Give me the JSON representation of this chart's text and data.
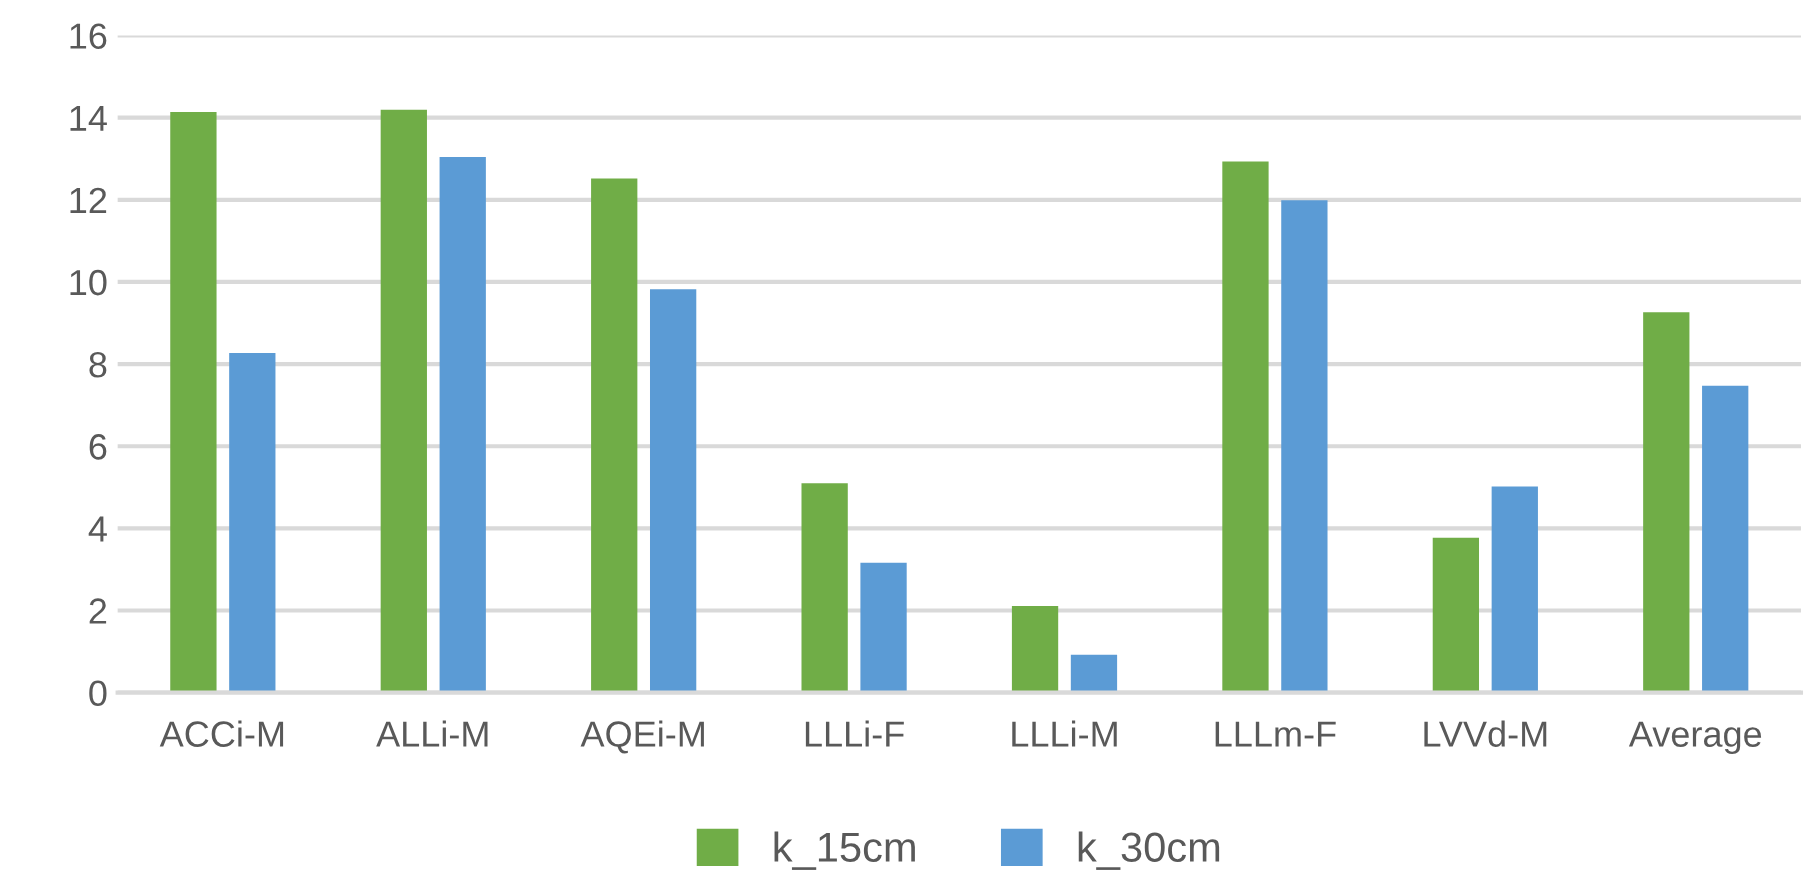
{
  "chart_data": {
    "type": "bar",
    "categories": [
      "ACCi-M",
      "ALLi-M",
      "AQEi-M",
      "LLLi-F",
      "LLLi-M",
      "LLLm-F",
      "LVVd-M",
      "Average"
    ],
    "series": [
      {
        "name": "k_15cm",
        "color": "#70ad47",
        "values": [
          14.14,
          14.19,
          12.52,
          5.1,
          2.11,
          12.93,
          3.77,
          9.26
        ]
      },
      {
        "name": "k_30cm",
        "color": "#5b9bd5",
        "values": [
          8.27,
          13.04,
          9.82,
          3.16,
          0.92,
          11.99,
          5.02,
          7.47
        ]
      }
    ],
    "ylim": [
      0,
      16
    ],
    "yticks": [
      0,
      2,
      4,
      6,
      8,
      10,
      12,
      14,
      16
    ],
    "grid": "y",
    "legend": "bottom"
  }
}
